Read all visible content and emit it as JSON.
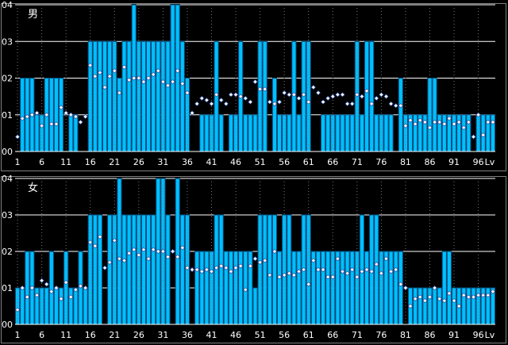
{
  "chart_data": [
    {
      "type": "bar",
      "title": "男",
      "x_label_suffix": "Lv",
      "x_ticks": [
        1,
        6,
        11,
        16,
        21,
        26,
        31,
        36,
        41,
        46,
        51,
        56,
        61,
        66,
        71,
        76,
        81,
        86,
        91,
        96
      ],
      "y_ticks": [
        "00",
        "01",
        "02",
        "03",
        "04"
      ],
      "ylim": [
        0,
        4
      ],
      "bar_color": "#00bfff",
      "marker_color": "#ffffff",
      "grid": true,
      "levels_count": 99,
      "values": [
        0,
        2,
        2,
        2,
        1,
        1,
        2,
        2,
        2,
        2,
        0,
        1,
        1,
        0,
        0,
        3,
        3,
        3,
        3,
        3,
        3,
        2,
        3,
        3,
        4,
        3,
        3,
        3,
        3,
        3,
        3,
        3,
        4,
        4,
        3,
        2,
        0,
        0,
        1,
        1,
        1,
        3,
        1,
        0,
        1,
        1,
        3,
        1,
        1,
        1,
        3,
        3,
        0,
        2,
        1,
        1,
        1,
        3,
        1,
        3,
        3,
        0,
        0,
        1,
        1,
        1,
        1,
        1,
        1,
        1,
        3,
        1,
        3,
        3,
        1,
        1,
        1,
        1,
        0,
        2,
        1,
        1,
        1,
        1,
        1,
        2,
        2,
        1,
        1,
        1,
        1,
        1,
        1,
        1,
        0,
        1,
        1,
        1,
        1
      ],
      "averages": [
        0.4,
        0.9,
        0.95,
        1.0,
        1.05,
        0.7,
        1.0,
        0.75,
        0.75,
        1.2,
        1.05,
        1.0,
        0.95,
        0.8,
        0.95,
        2.35,
        2.05,
        2.15,
        1.75,
        2.05,
        2.2,
        1.6,
        2.3,
        1.95,
        2.0,
        2.0,
        1.9,
        2.0,
        2.1,
        2.2,
        1.9,
        1.8,
        1.9,
        2.2,
        1.85,
        1.6,
        1.05,
        1.3,
        1.45,
        1.4,
        1.3,
        1.55,
        1.4,
        1.3,
        1.55,
        1.55,
        1.5,
        1.45,
        1.35,
        1.9,
        1.7,
        1.7,
        1.35,
        1.3,
        1.35,
        1.6,
        1.55,
        1.55,
        1.45,
        1.55,
        1.35,
        1.75,
        1.6,
        1.35,
        1.45,
        1.5,
        1.55,
        1.55,
        1.3,
        1.3,
        1.55,
        1.5,
        1.65,
        1.3,
        1.45,
        1.55,
        1.5,
        1.3,
        1.25,
        1.25,
        0.7,
        0.85,
        0.75,
        0.85,
        0.8,
        0.65,
        0.8,
        0.8,
        0.75,
        0.9,
        0.75,
        0.8,
        0.65,
        0.8,
        0.4,
        1.0,
        0.45,
        0.8,
        0.8
      ]
    },
    {
      "type": "bar",
      "title": "女",
      "x_label_suffix": "Lv",
      "x_ticks": [
        1,
        6,
        11,
        16,
        21,
        26,
        31,
        36,
        41,
        46,
        51,
        56,
        61,
        66,
        71,
        76,
        81,
        86,
        91,
        96
      ],
      "y_ticks": [
        "00",
        "01",
        "02",
        "03",
        "04"
      ],
      "ylim": [
        0,
        4
      ],
      "bar_color": "#00bfff",
      "marker_color": "#ffffff",
      "grid": true,
      "levels_count": 99,
      "values": [
        1,
        1,
        2,
        2,
        1,
        1,
        1,
        2,
        1,
        1,
        2,
        1,
        1,
        2,
        1,
        3,
        3,
        3,
        0,
        3,
        3,
        4,
        3,
        3,
        3,
        3,
        3,
        3,
        3,
        4,
        4,
        3,
        0,
        4,
        3,
        3,
        0,
        2,
        2,
        2,
        2,
        3,
        3,
        2,
        2,
        2,
        2,
        2,
        2,
        1,
        3,
        3,
        3,
        3,
        2,
        3,
        3,
        2,
        2,
        3,
        3,
        2,
        2,
        2,
        2,
        2,
        2,
        2,
        2,
        2,
        2,
        3,
        2,
        3,
        3,
        2,
        2,
        2,
        2,
        2,
        0,
        1,
        1,
        1,
        1,
        1,
        1,
        1,
        2,
        2,
        1,
        1,
        1,
        1,
        1,
        1,
        1,
        1,
        1
      ],
      "averages": [
        0.4,
        1.0,
        0.75,
        1.0,
        0.8,
        1.2,
        1.1,
        0.9,
        1.0,
        0.7,
        1.15,
        0.75,
        0.95,
        1.05,
        1.0,
        2.25,
        2.15,
        2.4,
        1.55,
        1.7,
        2.3,
        1.8,
        1.75,
        1.95,
        2.05,
        1.9,
        2.05,
        1.8,
        2.05,
        2.0,
        2.0,
        1.85,
        2.0,
        1.85,
        2.1,
        1.55,
        1.5,
        1.5,
        1.45,
        1.5,
        1.45,
        1.55,
        1.6,
        1.55,
        1.45,
        1.55,
        1.6,
        0.95,
        1.6,
        1.8,
        1.7,
        1.75,
        1.35,
        2.0,
        1.3,
        1.35,
        1.4,
        1.35,
        1.45,
        1.5,
        1.1,
        1.75,
        1.5,
        1.5,
        1.3,
        1.3,
        1.8,
        1.45,
        1.4,
        1.5,
        1.3,
        1.45,
        1.5,
        1.45,
        1.65,
        1.4,
        1.8,
        1.45,
        1.5,
        1.1,
        1.0,
        0.5,
        0.7,
        0.75,
        0.65,
        0.75,
        1.0,
        0.7,
        0.65,
        0.85,
        0.65,
        0.5,
        0.8,
        0.75,
        0.75,
        0.8,
        0.8,
        0.8,
        0.9
      ]
    }
  ]
}
